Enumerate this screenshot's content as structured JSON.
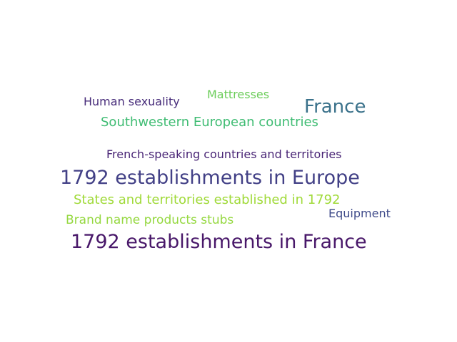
{
  "word_cloud": {
    "words": [
      {
        "text": "Human sexuality",
        "color": "#472c7a"
      },
      {
        "text": "Mattresses",
        "color": "#6ccd5a"
      },
      {
        "text": "France",
        "color": "#3b728b"
      },
      {
        "text": "Southwestern European countries",
        "color": "#3fbc73"
      },
      {
        "text": "French-speaking countries and territories",
        "color": "#482475"
      },
      {
        "text": "1792 establishments in Europe",
        "color": "#424086"
      },
      {
        "text": "States and territories established in 1792",
        "color": "#a0da39"
      },
      {
        "text": "Equipment",
        "color": "#3e4a89"
      },
      {
        "text": "Brand name products stubs",
        "color": "#95d840"
      },
      {
        "text": "1792 establishments in France",
        "color": "#481769"
      }
    ]
  }
}
